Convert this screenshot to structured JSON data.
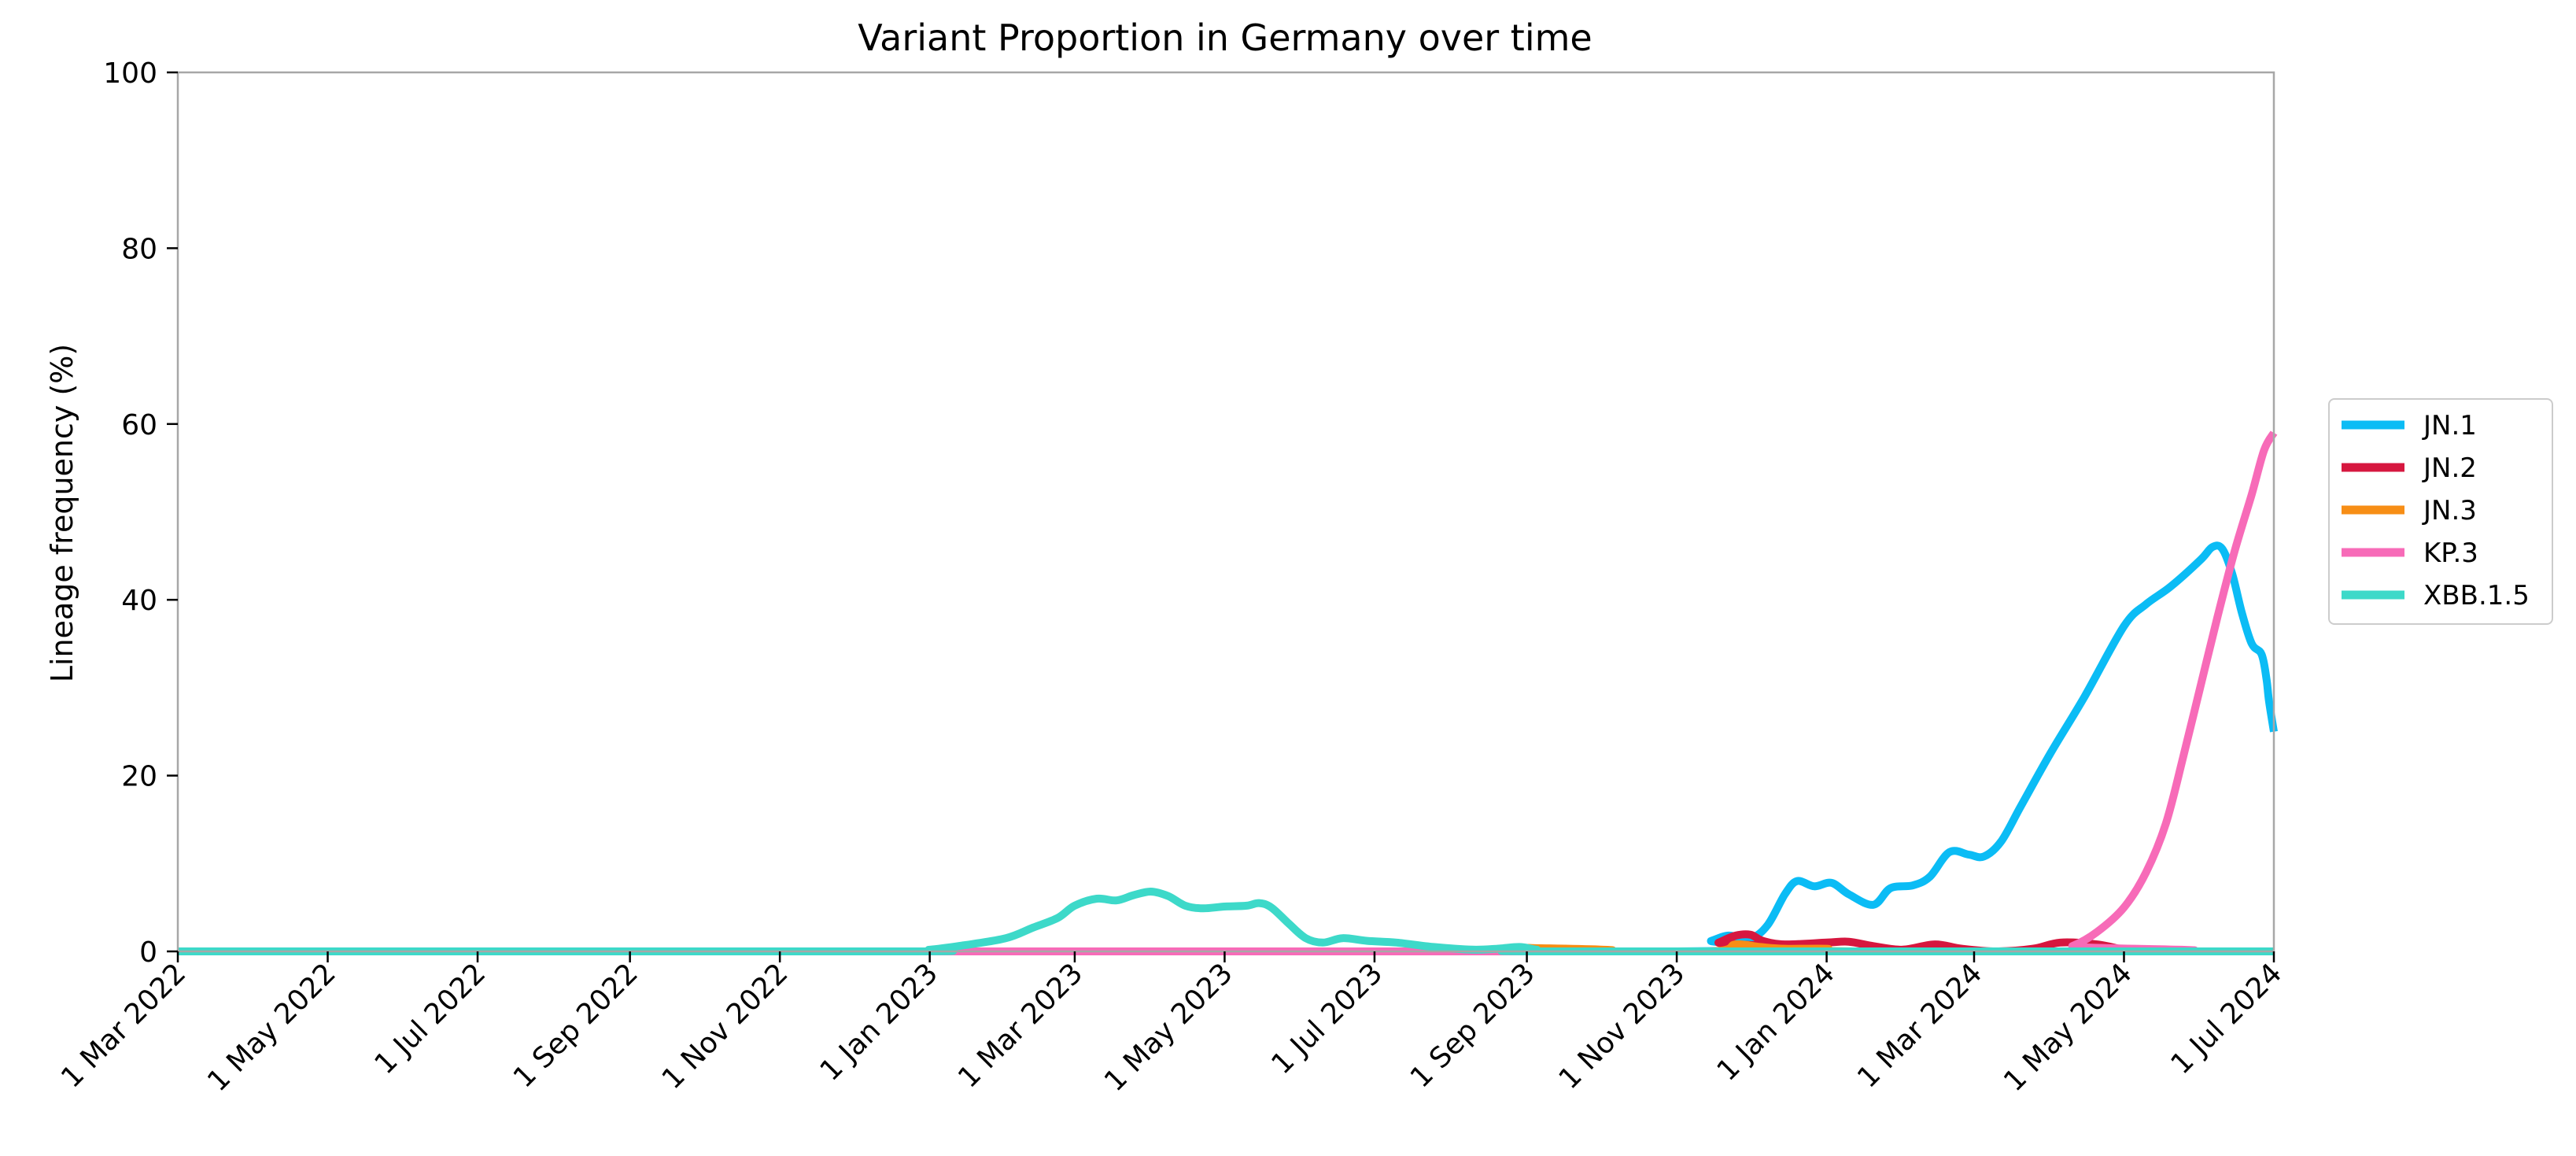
{
  "chart_data": {
    "type": "line",
    "title": "Variant Proportion in Germany over time",
    "xlabel": "",
    "ylabel": "Lineage frequency (%)",
    "xlim": [
      "2022-03-01",
      "2024-07-01"
    ],
    "ylim": [
      0,
      100
    ],
    "yticks": [
      0,
      20,
      40,
      60,
      80,
      100
    ],
    "xticks": [
      {
        "date": "2022-03-01",
        "label": "1 Mar 2022"
      },
      {
        "date": "2022-05-01",
        "label": "1 May 2022"
      },
      {
        "date": "2022-07-01",
        "label": "1 Jul 2022"
      },
      {
        "date": "2022-09-01",
        "label": "1 Sep 2022"
      },
      {
        "date": "2022-11-01",
        "label": "1 Nov 2022"
      },
      {
        "date": "2023-01-01",
        "label": "1 Jan 2023"
      },
      {
        "date": "2023-03-01",
        "label": "1 Mar 2023"
      },
      {
        "date": "2023-05-01",
        "label": "1 May 2023"
      },
      {
        "date": "2023-07-01",
        "label": "1 Jul 2023"
      },
      {
        "date": "2023-09-01",
        "label": "1 Sep 2023"
      },
      {
        "date": "2023-11-01",
        "label": "1 Nov 2023"
      },
      {
        "date": "2024-01-01",
        "label": "1 Jan 2024"
      },
      {
        "date": "2024-03-01",
        "label": "1 Mar 2024"
      },
      {
        "date": "2024-05-01",
        "label": "1 May 2024"
      },
      {
        "date": "2024-07-01",
        "label": "1 Jul 2024"
      }
    ],
    "grid": false,
    "legend_position": "right, outside plot",
    "series": [
      {
        "name": "JN.1",
        "color": "#0bbcf5",
        "points": [
          [
            "2022-03-01",
            0
          ],
          [
            "2023-11-01",
            0
          ],
          [
            "2023-11-15",
            1.2
          ],
          [
            "2023-11-22",
            1.8
          ],
          [
            "2023-12-01",
            1.5
          ],
          [
            "2023-12-08",
            3
          ],
          [
            "2023-12-15",
            6.5
          ],
          [
            "2023-12-20",
            8
          ],
          [
            "2023-12-27",
            7.4
          ],
          [
            "2024-01-03",
            7.8
          ],
          [
            "2024-01-10",
            6.5
          ],
          [
            "2024-01-20",
            5.3
          ],
          [
            "2024-01-27",
            7.2
          ],
          [
            "2024-02-05",
            7.5
          ],
          [
            "2024-02-12",
            8.5
          ],
          [
            "2024-02-20",
            11.3
          ],
          [
            "2024-02-28",
            11
          ],
          [
            "2024-03-05",
            10.8
          ],
          [
            "2024-03-12",
            12.5
          ],
          [
            "2024-03-20",
            16.5
          ],
          [
            "2024-04-01",
            22.5
          ],
          [
            "2024-04-15",
            29
          ],
          [
            "2024-05-01",
            37
          ],
          [
            "2024-05-10",
            39.5
          ],
          [
            "2024-05-20",
            41.5
          ],
          [
            "2024-06-01",
            44.5
          ],
          [
            "2024-06-06",
            46
          ],
          [
            "2024-06-10",
            45.8
          ],
          [
            "2024-06-14",
            43
          ],
          [
            "2024-06-18",
            38.5
          ],
          [
            "2024-06-22",
            35
          ],
          [
            "2024-06-26",
            33.8
          ],
          [
            "2024-06-28",
            31
          ],
          [
            "2024-06-29",
            28.5
          ],
          [
            "2024-07-01",
            25
          ]
        ]
      },
      {
        "name": "JN.2",
        "color": "#d6173f",
        "points": [
          [
            "2022-03-01",
            0
          ],
          [
            "2023-11-10",
            0
          ],
          [
            "2023-11-18",
            1
          ],
          [
            "2023-11-25",
            1.8
          ],
          [
            "2023-12-01",
            1.9
          ],
          [
            "2023-12-06",
            1.2
          ],
          [
            "2023-12-15",
            0.8
          ],
          [
            "2024-01-01",
            1
          ],
          [
            "2024-01-10",
            1.1
          ],
          [
            "2024-01-20",
            0.6
          ],
          [
            "2024-02-01",
            0.2
          ],
          [
            "2024-02-14",
            0.8
          ],
          [
            "2024-02-25",
            0.3
          ],
          [
            "2024-03-10",
            0
          ],
          [
            "2024-03-25",
            0.3
          ],
          [
            "2024-04-05",
            1
          ],
          [
            "2024-04-20",
            0.8
          ],
          [
            "2024-05-01",
            0.2
          ],
          [
            "2024-05-10",
            0
          ],
          [
            "2024-07-01",
            0
          ]
        ]
      },
      {
        "name": "JN.3",
        "color": "#f78e16",
        "points": [
          [
            "2022-03-01",
            0
          ],
          [
            "2023-08-25",
            0
          ],
          [
            "2023-09-01",
            0.4
          ],
          [
            "2023-09-10",
            0.2
          ],
          [
            "2023-09-20",
            0
          ],
          [
            "2023-11-15",
            0
          ],
          [
            "2023-11-25",
            0.8
          ],
          [
            "2023-12-05",
            0.5
          ],
          [
            "2023-12-15",
            0.3
          ],
          [
            "2024-01-01",
            0.3
          ],
          [
            "2024-01-15",
            0
          ],
          [
            "2024-07-01",
            0
          ]
        ]
      },
      {
        "name": "KP.3",
        "color": "#f76bb8",
        "points": [
          [
            "2022-03-01",
            0
          ],
          [
            "2024-04-01",
            0
          ],
          [
            "2024-04-10",
            0.6
          ],
          [
            "2024-04-20",
            2.2
          ],
          [
            "2024-05-01",
            5
          ],
          [
            "2024-05-10",
            9
          ],
          [
            "2024-05-18",
            14.5
          ],
          [
            "2024-05-25",
            22
          ],
          [
            "2024-06-01",
            30
          ],
          [
            "2024-06-08",
            38
          ],
          [
            "2024-06-15",
            45.5
          ],
          [
            "2024-06-22",
            52
          ],
          [
            "2024-06-27",
            57
          ],
          [
            "2024-07-01",
            59
          ]
        ]
      },
      {
        "name": "XBB.1.5",
        "color": "#3dd9c9",
        "points": [
          [
            "2022-03-01",
            0
          ],
          [
            "2022-12-15",
            0
          ],
          [
            "2023-01-01",
            0.2
          ],
          [
            "2023-01-15",
            0.7
          ],
          [
            "2023-02-01",
            1.5
          ],
          [
            "2023-02-12",
            2.7
          ],
          [
            "2023-02-22",
            3.8
          ],
          [
            "2023-03-01",
            5.2
          ],
          [
            "2023-03-10",
            6
          ],
          [
            "2023-03-18",
            5.8
          ],
          [
            "2023-03-25",
            6.4
          ],
          [
            "2023-04-01",
            6.8
          ],
          [
            "2023-04-08",
            6.3
          ],
          [
            "2023-04-15",
            5.2
          ],
          [
            "2023-04-22",
            4.9
          ],
          [
            "2023-05-01",
            5.1
          ],
          [
            "2023-05-10",
            5.2
          ],
          [
            "2023-05-15",
            5.5
          ],
          [
            "2023-05-20",
            5
          ],
          [
            "2023-05-27",
            3.2
          ],
          [
            "2023-06-03",
            1.5
          ],
          [
            "2023-06-10",
            1
          ],
          [
            "2023-06-18",
            1.5
          ],
          [
            "2023-06-28",
            1.2
          ],
          [
            "2023-07-10",
            1
          ],
          [
            "2023-07-25",
            0.5
          ],
          [
            "2023-08-10",
            0.2
          ],
          [
            "2023-08-20",
            0.3
          ],
          [
            "2023-08-29",
            0.5
          ],
          [
            "2023-09-05",
            0.2
          ],
          [
            "2023-09-15",
            0
          ],
          [
            "2024-07-01",
            0
          ]
        ]
      }
    ]
  }
}
